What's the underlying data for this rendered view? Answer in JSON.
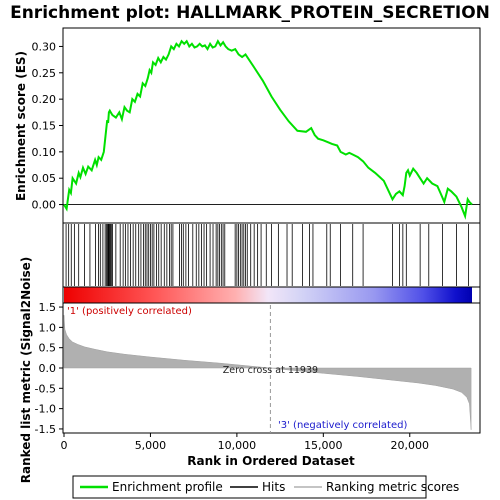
{
  "chart_data": {
    "type": "line",
    "title": "Enrichment plot: HALLMARK_PROTEIN_SECRETION",
    "top_panel": {
      "ylabel": "Enrichment score (ES)",
      "ylim": [
        -0.035,
        0.335
      ],
      "yticks": [
        0.0,
        0.05,
        0.1,
        0.15,
        0.2,
        0.25,
        0.3
      ],
      "ytick_labels": [
        "0.00",
        "0.05",
        "0.10",
        "0.15",
        "0.20",
        "0.25",
        "0.30"
      ],
      "series": {
        "name": "Enrichment profile",
        "color": "#00e000",
        "x": [
          0,
          150,
          300,
          400,
          500,
          700,
          850,
          950,
          1100,
          1250,
          1400,
          1600,
          1800,
          1900,
          2000,
          2150,
          2300,
          2400,
          2500,
          2550,
          2600,
          2650,
          2700,
          2800,
          3000,
          3200,
          3350,
          3500,
          3650,
          3800,
          3950,
          4100,
          4250,
          4400,
          4550,
          4700,
          4850,
          4950,
          5050,
          5150,
          5300,
          5450,
          5600,
          5750,
          5900,
          6050,
          6200,
          6350,
          6500,
          6650,
          6800,
          6950,
          7100,
          7250,
          7400,
          7550,
          7700,
          7850,
          8000,
          8150,
          8300,
          8450,
          8600,
          8750,
          8900,
          9050,
          9200,
          9350,
          9500,
          9700,
          9900,
          10100,
          10300,
          10500,
          11000,
          11500,
          12000,
          12500,
          13000,
          13500,
          14000,
          14300,
          14500,
          14700,
          15000,
          15300,
          15500,
          15800,
          16000,
          16300,
          16500,
          16700,
          17000,
          17300,
          17600,
          18000,
          18500,
          19000,
          19200,
          19400,
          19600,
          19700,
          19800,
          19900,
          20000,
          20200,
          20400,
          20600,
          20800,
          21000,
          21300,
          21600,
          21800,
          22000,
          22200,
          22400,
          22700,
          23000,
          23200,
          23350,
          23450,
          23600
        ],
        "y": [
          0.0,
          -0.008,
          0.028,
          0.022,
          0.05,
          0.04,
          0.06,
          0.052,
          0.07,
          0.058,
          0.072,
          0.065,
          0.085,
          0.075,
          0.09,
          0.085,
          0.1,
          0.13,
          0.16,
          0.155,
          0.175,
          0.178,
          0.175,
          0.17,
          0.165,
          0.175,
          0.162,
          0.185,
          0.178,
          0.175,
          0.2,
          0.195,
          0.21,
          0.205,
          0.23,
          0.225,
          0.24,
          0.255,
          0.25,
          0.27,
          0.265,
          0.278,
          0.27,
          0.28,
          0.275,
          0.285,
          0.3,
          0.295,
          0.305,
          0.3,
          0.31,
          0.305,
          0.31,
          0.3,
          0.305,
          0.298,
          0.3,
          0.305,
          0.3,
          0.302,
          0.295,
          0.305,
          0.298,
          0.3,
          0.31,
          0.302,
          0.308,
          0.3,
          0.295,
          0.292,
          0.295,
          0.285,
          0.28,
          0.285,
          0.26,
          0.235,
          0.205,
          0.18,
          0.158,
          0.14,
          0.138,
          0.145,
          0.132,
          0.125,
          0.122,
          0.118,
          0.115,
          0.112,
          0.1,
          0.095,
          0.098,
          0.095,
          0.09,
          0.082,
          0.07,
          0.06,
          0.045,
          0.01,
          0.02,
          0.025,
          0.018,
          0.035,
          0.06,
          0.065,
          0.055,
          0.068,
          0.06,
          0.05,
          0.04,
          0.05,
          0.04,
          0.035,
          0.02,
          0.005,
          0.03,
          0.025,
          0.015,
          -0.005,
          -0.022,
          0.01,
          0.005,
          0.0
        ]
      }
    },
    "hits": [
      120,
      270,
      420,
      600,
      850,
      1180,
      1500,
      1820,
      2000,
      2100,
      2250,
      2380,
      2450,
      2520,
      2560,
      2600,
      2650,
      2700,
      2760,
      2800,
      3000,
      3250,
      3420,
      3550,
      3700,
      3850,
      4000,
      4150,
      4320,
      4450,
      4600,
      4700,
      4800,
      4900,
      5000,
      5100,
      5200,
      5350,
      5480,
      5620,
      5800,
      5950,
      6100,
      6200,
      6300,
      6680,
      6800,
      6900,
      7050,
      7200,
      7450,
      7650,
      7800,
      7950,
      8100,
      8250,
      8450,
      8620,
      8800,
      8900,
      9000,
      9100,
      9200,
      9300,
      9900,
      10000,
      10100,
      10200,
      10300,
      10400,
      10500,
      10600,
      10800,
      11000,
      11200,
      11400,
      11700,
      12000,
      12400,
      12900,
      13200,
      13800,
      14200,
      14400,
      15200,
      15400,
      16000,
      16700,
      17300,
      19000,
      19400,
      19600,
      19800,
      20600,
      21100,
      21900,
      22700,
      23400
    ],
    "bottom_panel": {
      "ylabel": "Ranked list metric (Signal2Noise)",
      "xlabel": "Rank in Ordered Dataset",
      "ylim": [
        -1.6,
        1.6
      ],
      "yticks": [
        -1.5,
        -1.0,
        -0.5,
        0.0,
        0.5,
        1.0,
        1.5
      ],
      "ytick_labels": [
        "-1.5",
        "-1.0",
        "-0.5",
        "0.0",
        "0.5",
        "1.0",
        "1.5"
      ],
      "xlim": [
        0,
        24000
      ],
      "xticks": [
        0,
        5000,
        10000,
        15000,
        20000
      ],
      "xtick_labels": [
        "0",
        "5,000",
        "10,000",
        "15,000",
        "20,000"
      ],
      "zero_cross_rank": 11939,
      "zero_cross_label": "Zero cross at 11939",
      "pos_label": "'1' (positively correlated)",
      "neg_label": "'3' (negatively correlated)",
      "metric_x": [
        0,
        50,
        150,
        300,
        500,
        800,
        1200,
        1800,
        2500,
        3500,
        5000,
        7000,
        9000,
        10500,
        11939,
        13000,
        15000,
        17000,
        19000,
        20500,
        21500,
        22500,
        23000,
        23300,
        23450,
        23550
      ],
      "metric_y": [
        1.3,
        0.95,
        0.82,
        0.72,
        0.64,
        0.58,
        0.52,
        0.46,
        0.4,
        0.34,
        0.27,
        0.19,
        0.12,
        0.06,
        0.0,
        -0.05,
        -0.13,
        -0.21,
        -0.3,
        -0.37,
        -0.43,
        -0.52,
        -0.6,
        -0.72,
        -0.88,
        -1.52
      ]
    },
    "n_ranks": 23600,
    "legend": [
      "Enrichment profile",
      "Hits",
      "Ranking metric scores"
    ],
    "colors": {
      "es_line": "#00e000",
      "hit_line": "#000000",
      "metric_fill": "#b0b0b0",
      "pos_color": "#cc0000",
      "neg_color": "#1a1acc"
    }
  }
}
